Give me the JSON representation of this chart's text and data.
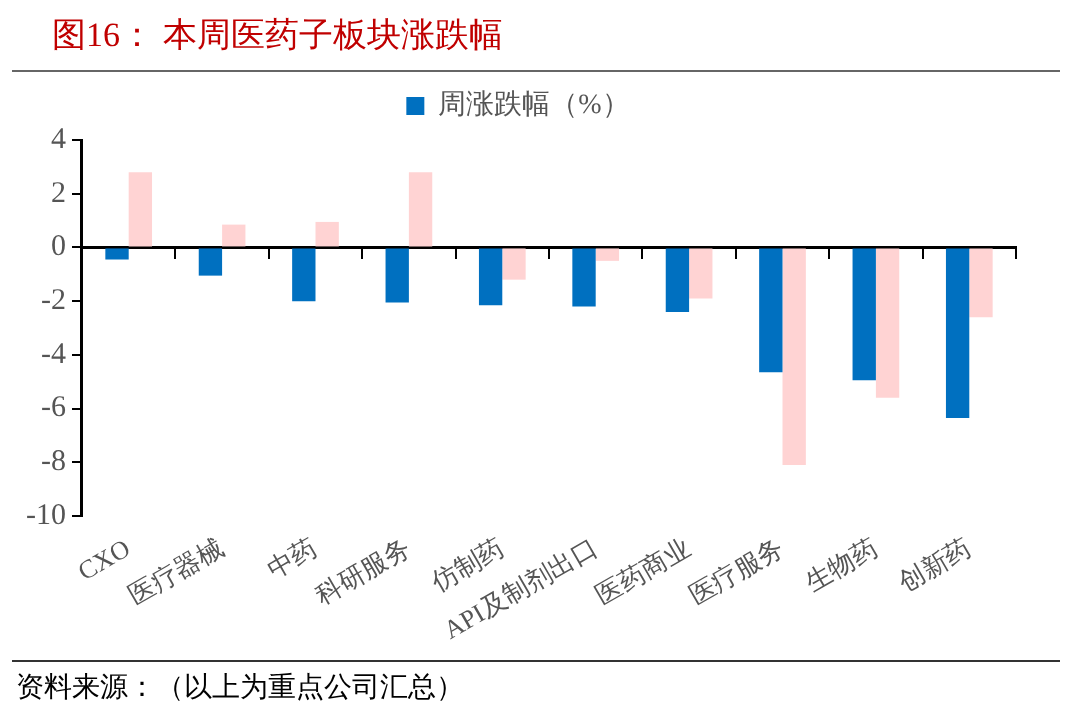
{
  "chart_data": {
    "type": "bar",
    "title": "图16：  本周医药子板块涨跌幅",
    "categories": [
      "CXO",
      "医疗器械",
      "中药",
      "科研服务",
      "仿制药",
      "API及制剂出口",
      "医药商业",
      "医疗服务",
      "生物药",
      "创新药"
    ],
    "series": [
      {
        "name": "周涨跌幅（%）",
        "color": "#0070c0",
        "values": [
          -0.45,
          -1.05,
          -2.0,
          -2.05,
          -2.15,
          -2.2,
          -2.4,
          -4.65,
          -4.95,
          -6.35
        ]
      },
      {
        "color": "#ffd3d3",
        "values": [
          2.8,
          0.85,
          0.95,
          2.8,
          -1.2,
          -0.5,
          -1.9,
          -8.1,
          -5.6,
          -2.6
        ]
      }
    ],
    "ylim": [
      -10,
      4
    ],
    "yticks": [
      -10,
      -8,
      -6,
      -4,
      -2,
      0,
      2,
      4
    ],
    "legend": "top",
    "annotations": [
      "资料来源：（以上为重点公司汇总）"
    ]
  }
}
